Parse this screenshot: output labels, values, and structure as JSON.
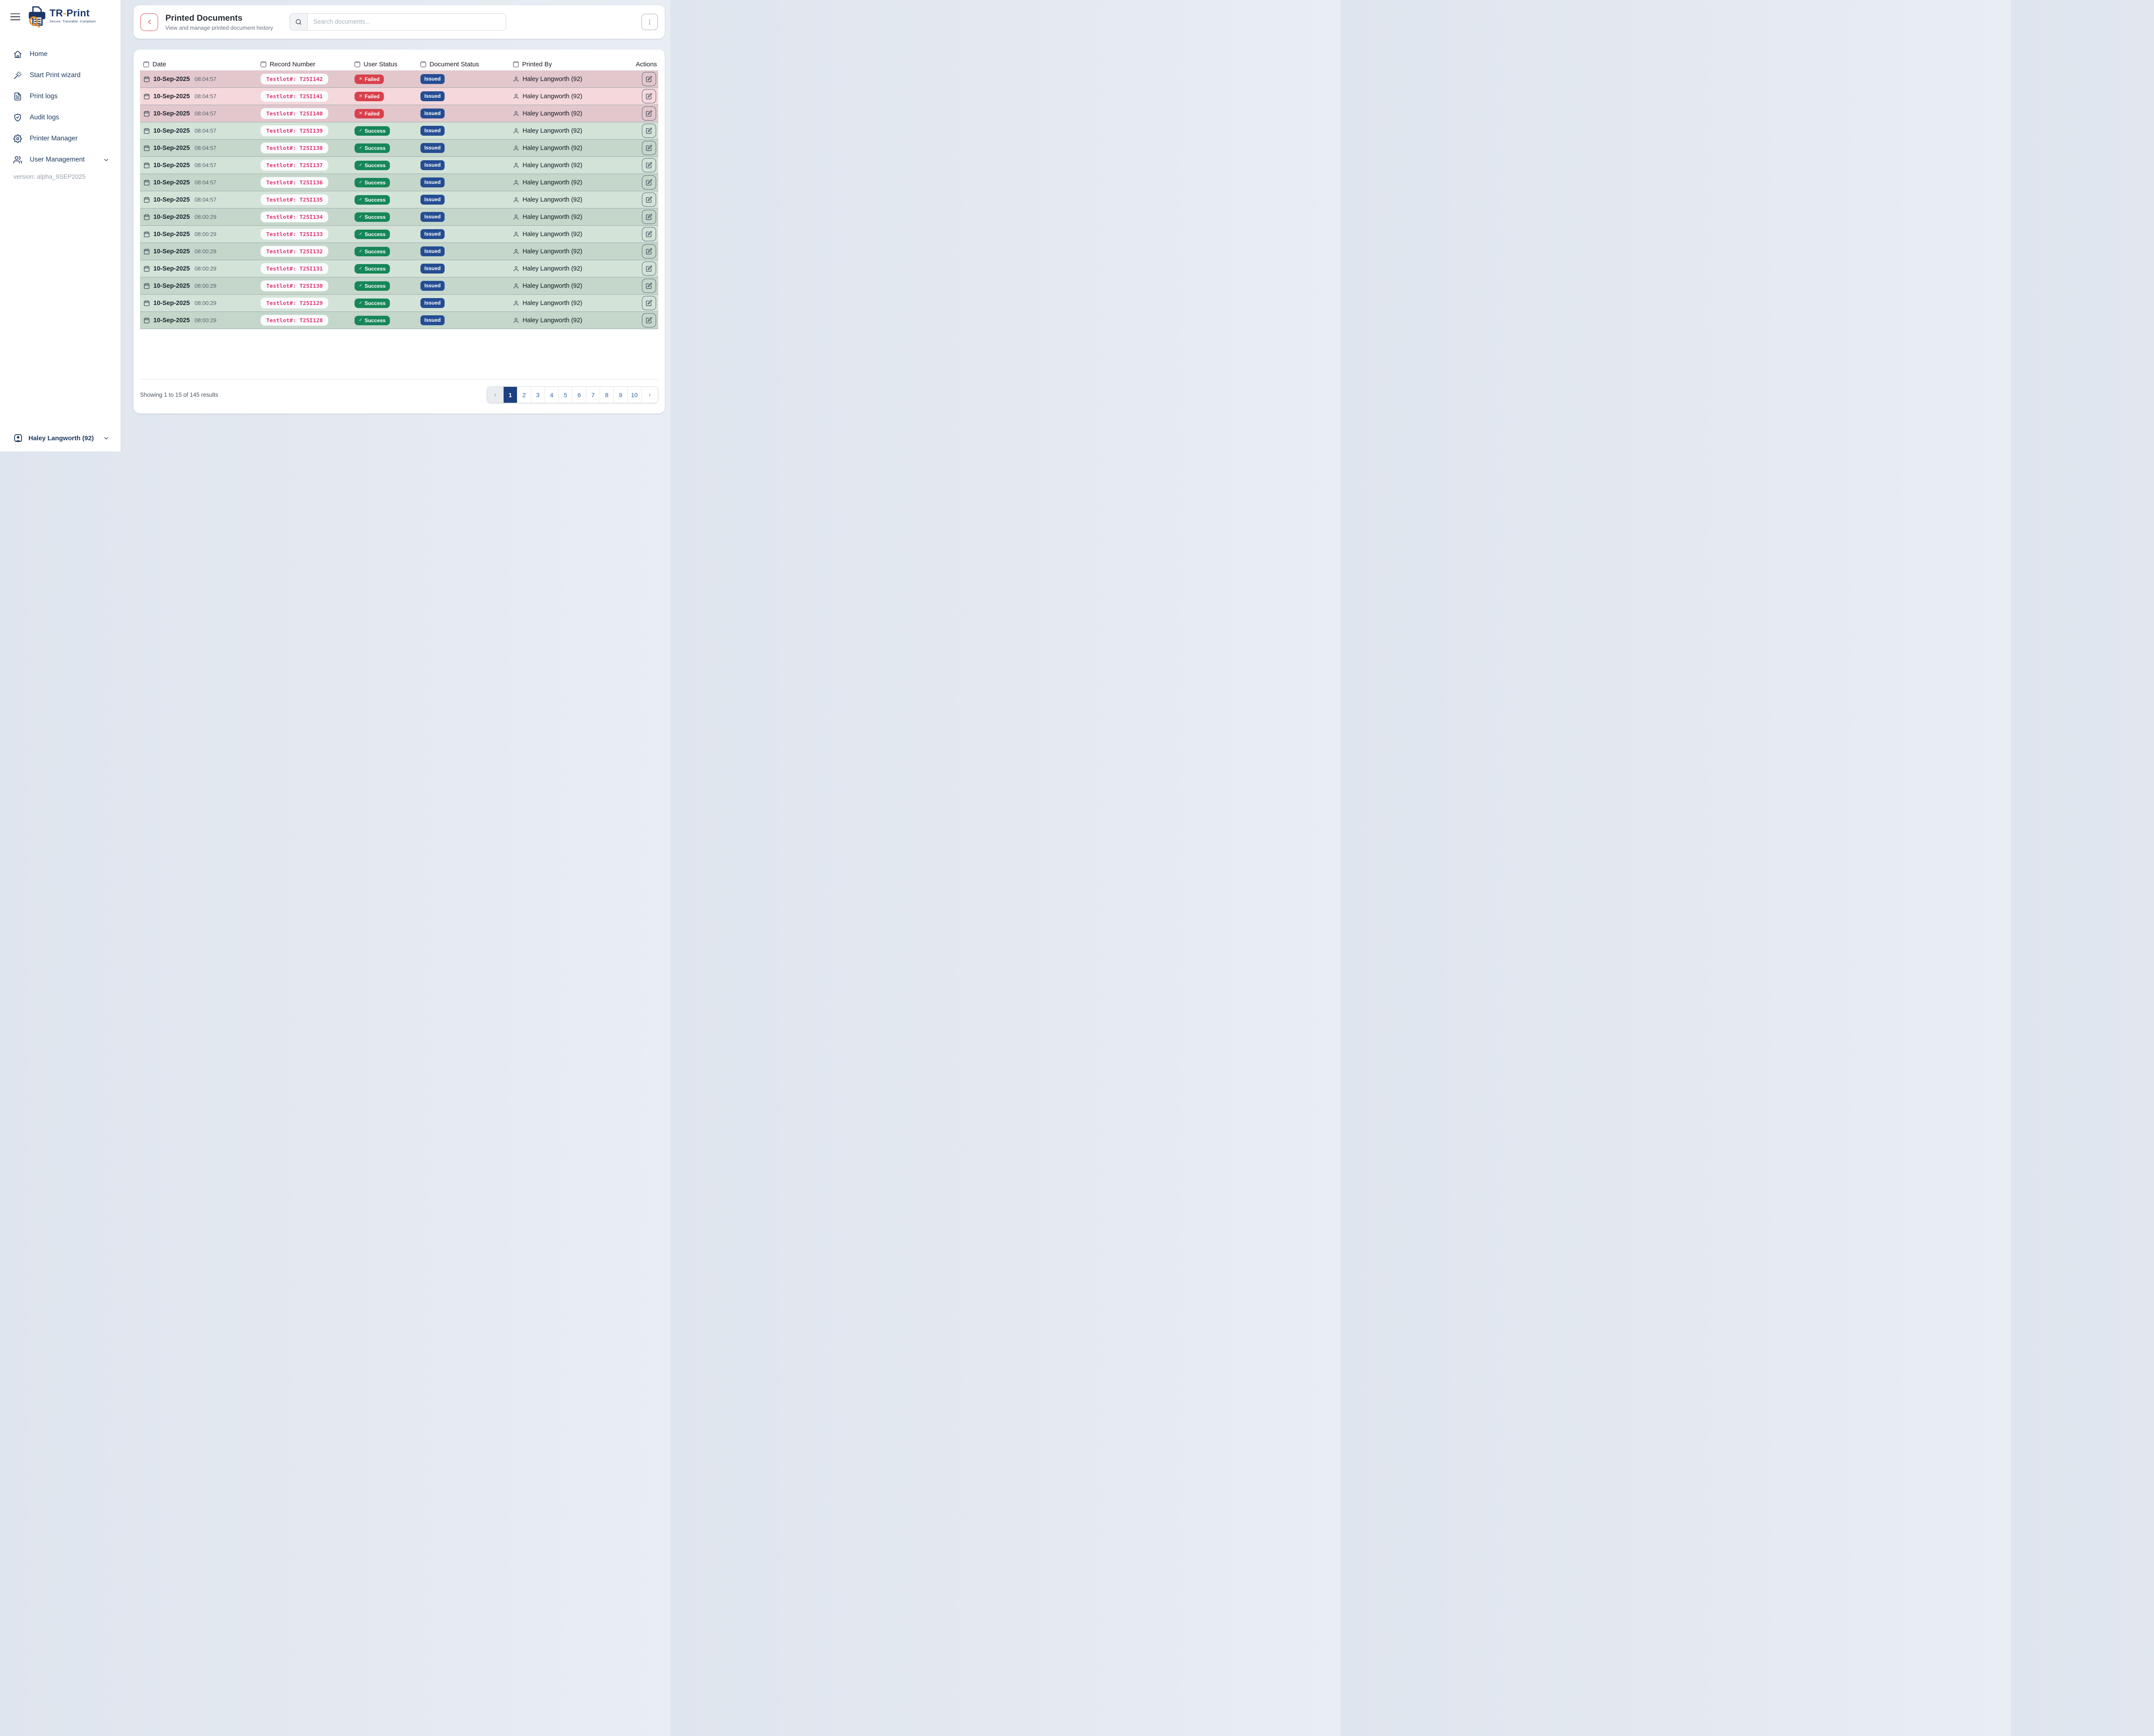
{
  "brand": {
    "name_tr": "TR",
    "name_dash": "-",
    "name_print": "Print",
    "tagline": "Secure. Traceable. Compliant."
  },
  "sidebar": {
    "items": [
      {
        "label": "Home",
        "icon": "home-icon"
      },
      {
        "label": "Start Print wizard",
        "icon": "wand-icon"
      },
      {
        "label": "Print logs",
        "icon": "document-icon"
      },
      {
        "label": "Audit logs",
        "icon": "shield-check-icon"
      },
      {
        "label": "Printer Manager",
        "icon": "gear-icon"
      },
      {
        "label": "User Management",
        "icon": "users-icon",
        "expandable": true
      }
    ],
    "version": "version: alpha_9SEP2025",
    "user": {
      "name": "Haley Langworth (92)"
    }
  },
  "header": {
    "title": "Printed Documents",
    "subtitle": "View and manage printed document history",
    "search_placeholder": "Search documents..."
  },
  "table": {
    "columns": [
      {
        "label": "Date",
        "checkbox": true
      },
      {
        "label": "Record Number",
        "checkbox": true
      },
      {
        "label": "User Status",
        "checkbox": true
      },
      {
        "label": "Document Status",
        "checkbox": true
      },
      {
        "label": "Printed By",
        "checkbox": true
      },
      {
        "label": "Actions",
        "checkbox": false
      }
    ],
    "rows": [
      {
        "date": "10-Sep-2025",
        "time": "08:04:57",
        "record": "Testlot#: T25I142",
        "user_status": "Failed",
        "document_status": "Issued",
        "printed_by": "Haley Langworth (92)"
      },
      {
        "date": "10-Sep-2025",
        "time": "08:04:57",
        "record": "Testlot#: T25I141",
        "user_status": "Failed",
        "document_status": "Issued",
        "printed_by": "Haley Langworth (92)"
      },
      {
        "date": "10-Sep-2025",
        "time": "08:04:57",
        "record": "Testlot#: T25I140",
        "user_status": "Failed",
        "document_status": "Issued",
        "printed_by": "Haley Langworth (92)"
      },
      {
        "date": "10-Sep-2025",
        "time": "08:04:57",
        "record": "Testlot#: T25I139",
        "user_status": "Success",
        "document_status": "Issued",
        "printed_by": "Haley Langworth (92)"
      },
      {
        "date": "10-Sep-2025",
        "time": "08:04:57",
        "record": "Testlot#: T25I138",
        "user_status": "Success",
        "document_status": "Issued",
        "printed_by": "Haley Langworth (92)"
      },
      {
        "date": "10-Sep-2025",
        "time": "08:04:57",
        "record": "Testlot#: T25I137",
        "user_status": "Success",
        "document_status": "Issued",
        "printed_by": "Haley Langworth (92)"
      },
      {
        "date": "10-Sep-2025",
        "time": "08:04:57",
        "record": "Testlot#: T25I136",
        "user_status": "Success",
        "document_status": "Issued",
        "printed_by": "Haley Langworth (92)"
      },
      {
        "date": "10-Sep-2025",
        "time": "08:04:57",
        "record": "Testlot#: T25I135",
        "user_status": "Success",
        "document_status": "Issued",
        "printed_by": "Haley Langworth (92)"
      },
      {
        "date": "10-Sep-2025",
        "time": "08:00:29",
        "record": "Testlot#: T25I134",
        "user_status": "Success",
        "document_status": "Issued",
        "printed_by": "Haley Langworth (92)"
      },
      {
        "date": "10-Sep-2025",
        "time": "08:00:29",
        "record": "Testlot#: T25I133",
        "user_status": "Success",
        "document_status": "Issued",
        "printed_by": "Haley Langworth (92)"
      },
      {
        "date": "10-Sep-2025",
        "time": "08:00:29",
        "record": "Testlot#: T25I132",
        "user_status": "Success",
        "document_status": "Issued",
        "printed_by": "Haley Langworth (92)"
      },
      {
        "date": "10-Sep-2025",
        "time": "08:00:29",
        "record": "Testlot#: T25I131",
        "user_status": "Success",
        "document_status": "Issued",
        "printed_by": "Haley Langworth (92)"
      },
      {
        "date": "10-Sep-2025",
        "time": "08:00:29",
        "record": "Testlot#: T25I130",
        "user_status": "Success",
        "document_status": "Issued",
        "printed_by": "Haley Langworth (92)"
      },
      {
        "date": "10-Sep-2025",
        "time": "08:00:29",
        "record": "Testlot#: T25I129",
        "user_status": "Success",
        "document_status": "Issued",
        "printed_by": "Haley Langworth (92)"
      },
      {
        "date": "10-Sep-2025",
        "time": "08:00:29",
        "record": "Testlot#: T25I128",
        "user_status": "Success",
        "document_status": "Issued",
        "printed_by": "Haley Langworth (92)"
      }
    ]
  },
  "footer": {
    "summary": "Showing 1 to 15 of 145 results",
    "prev_label": "‹",
    "next_label": "›",
    "pages": [
      "1",
      "2",
      "3",
      "4",
      "5",
      "6",
      "7",
      "8",
      "9",
      "10"
    ],
    "active_page": "1"
  },
  "colors": {
    "page-bg": "#dfe5ee",
    "card-bg": "#ffffff",
    "navy": "#1e3a5f",
    "brand-navy": "#1c3766",
    "brand-orange": "#e8932c",
    "title-color": "#272c33",
    "muted": "#6b7280",
    "header-text": "#161b22",
    "date-color": "#1b2330",
    "time-color": "#586270",
    "record-pink": "#e0336f",
    "record-pill-bg": "#fafbfc",
    "failed-red": "#d8414c",
    "success-green": "#178658",
    "issued-blue": "#254d93",
    "row-failed-dark": "#e2c7cc",
    "row-failed-light": "#f5d8dc",
    "row-success-dark": "#c4d7ca",
    "row-success-light": "#d3e3d8",
    "row-border": "#a2aab0",
    "back-red": "#e0474f",
    "border-gray": "#d3d8de",
    "version-gray": "#9aa1ab",
    "active-page-bg": "#1e4080",
    "page-link": "#3060a8",
    "prev-bg": "#e9ecf0",
    "prev-fg": "#9aa2ac",
    "divider": "#e3e6ea",
    "summary-gray": "#4b5560"
  }
}
